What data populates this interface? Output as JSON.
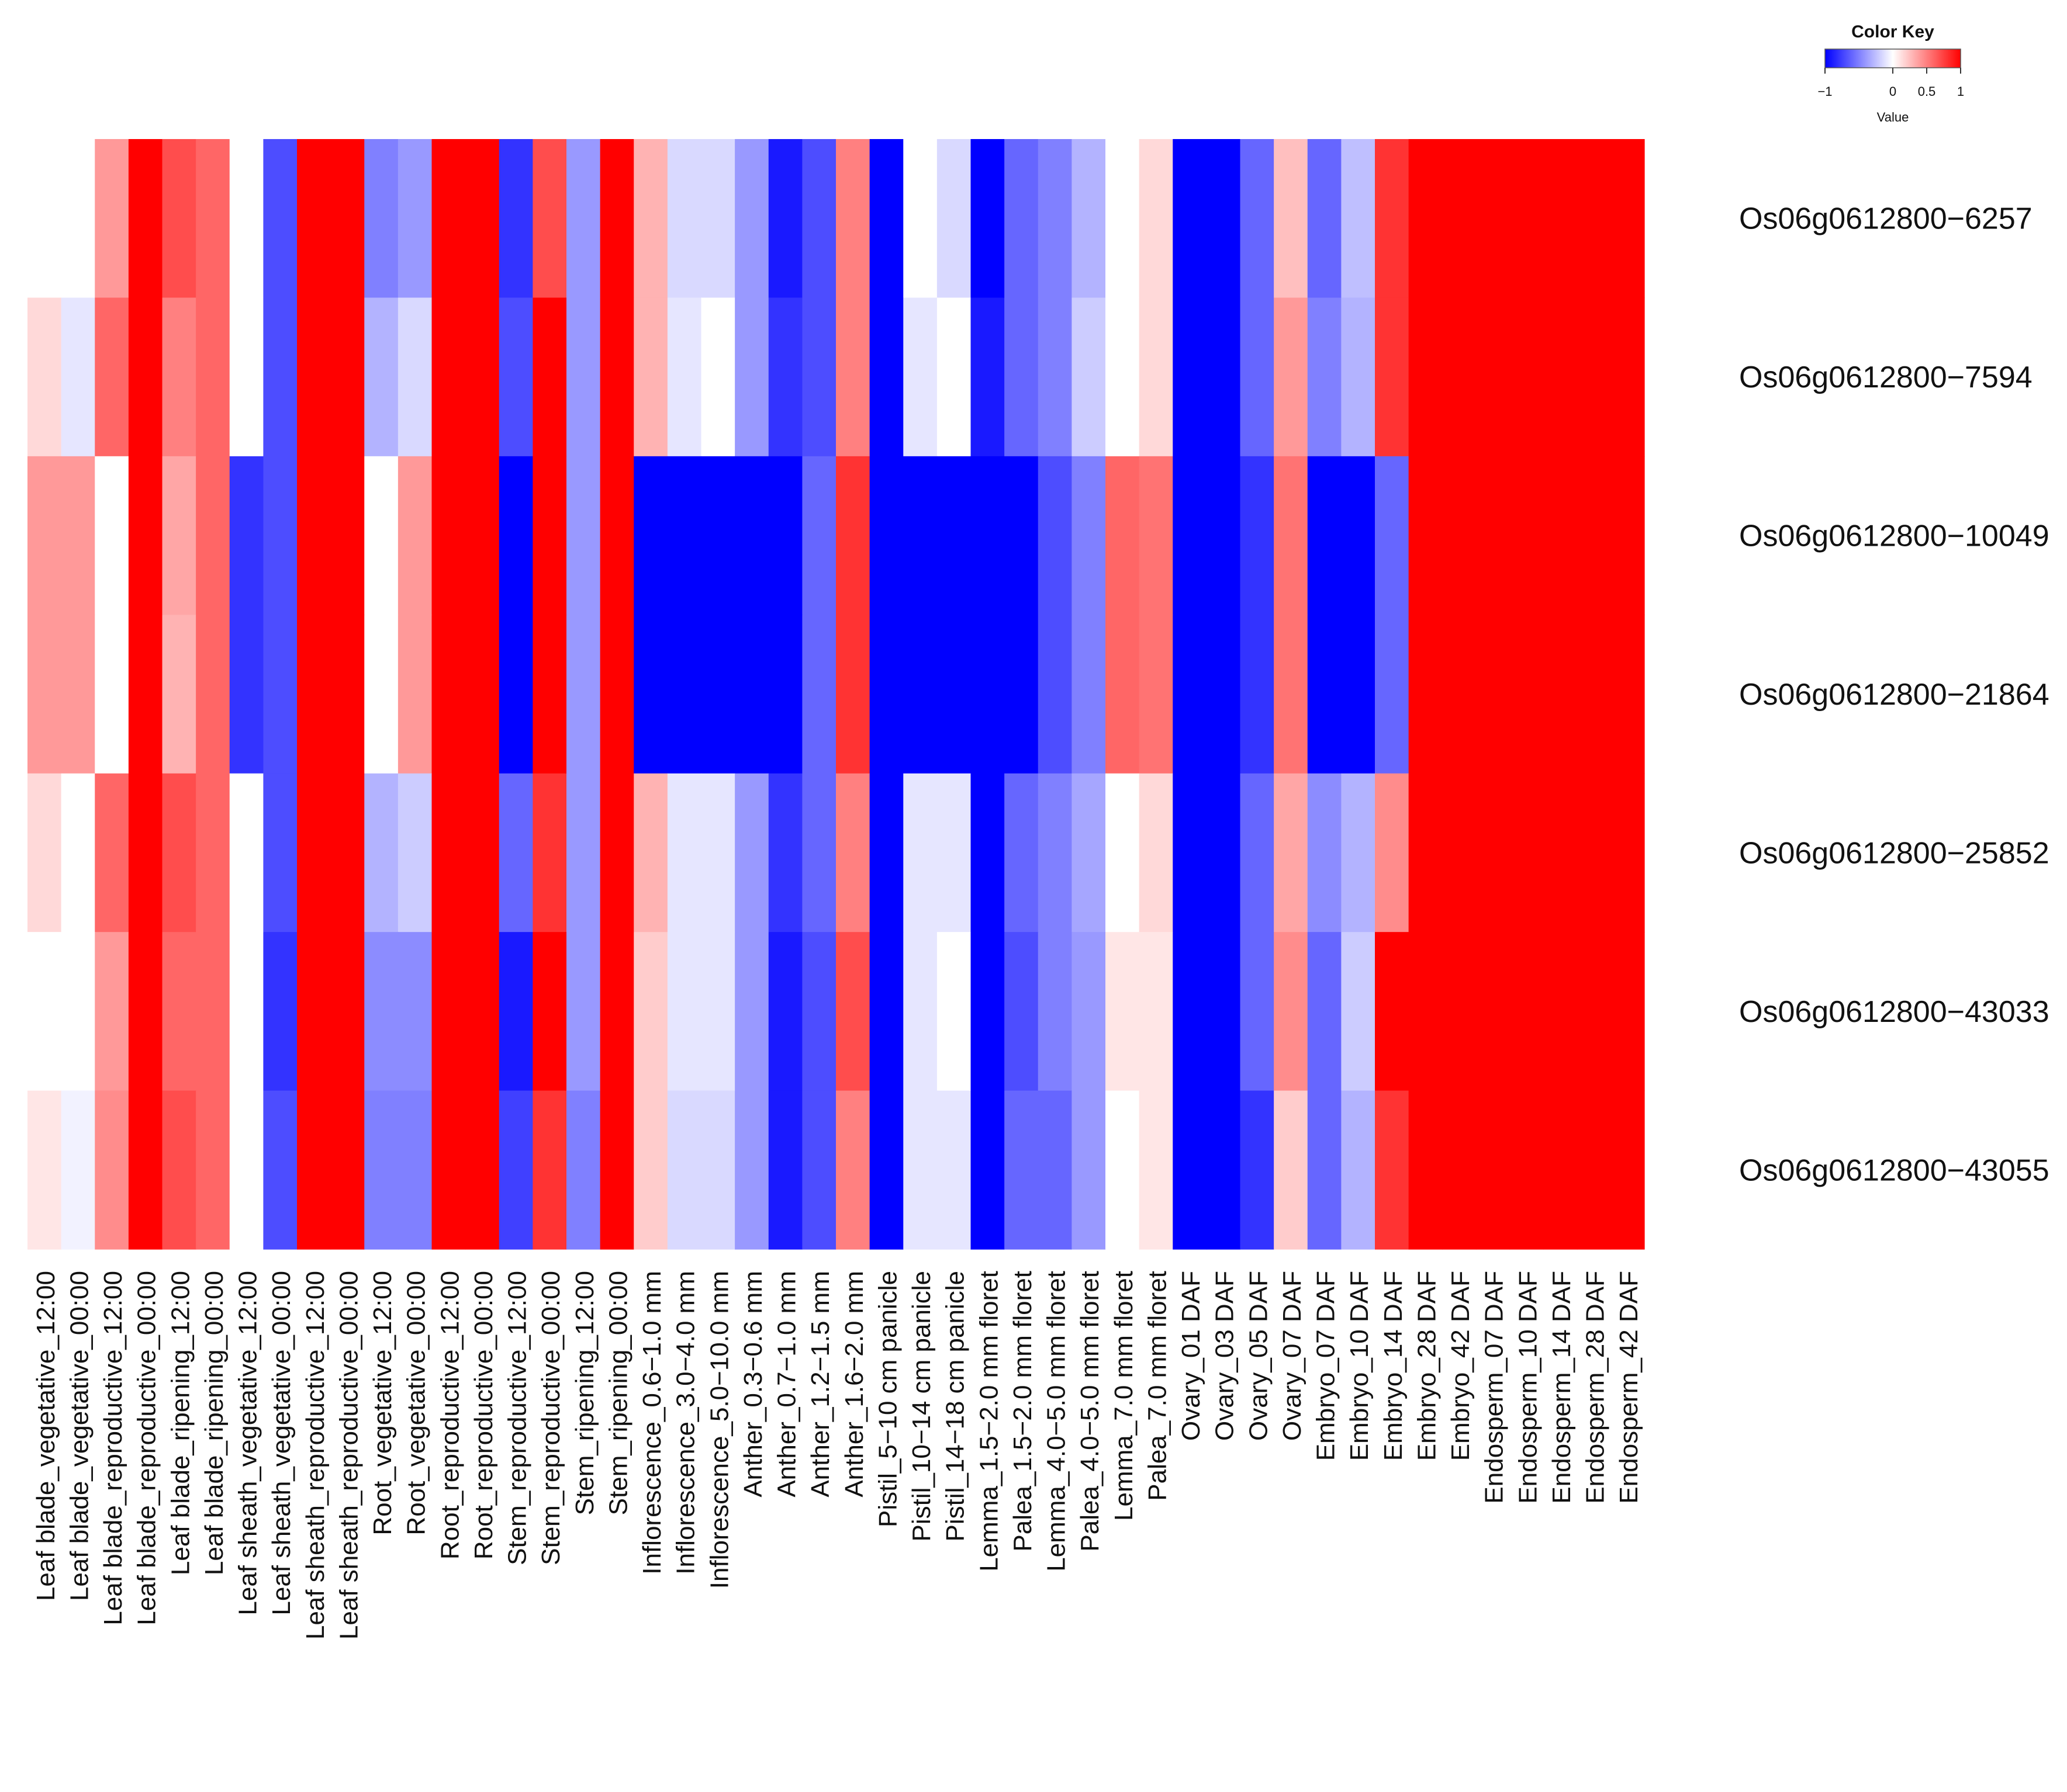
{
  "chart_data": {
    "type": "heatmap",
    "title": "",
    "color_key": {
      "title": "Color Key",
      "label": "Value",
      "ticks": [
        "−1",
        "0",
        "0.5",
        "1"
      ],
      "tick_values": [
        -1,
        0,
        0.5,
        1
      ],
      "range": [
        -1,
        1
      ],
      "low_color": "#0000ff",
      "mid_color": "#ffffff",
      "high_color": "#ff0000"
    },
    "rows": [
      "Os06g0612800−6257",
      "Os06g0612800−7594",
      "Os06g0612800−10049",
      "Os06g0612800−21864",
      "Os06g0612800−25852",
      "Os06g0612800−43033",
      "Os06g0612800−43055"
    ],
    "columns": [
      "Leaf blade_vegetative_12:00",
      "Leaf blade_vegetative_00:00",
      "Leaf blade_reproductive_12:00",
      "Leaf blade_reproductive_00:00",
      "Leaf blade_ripening_12:00",
      "Leaf blade_ripening_00:00",
      "Leaf sheath_vegetative_12:00",
      "Leaf sheath_vegetative_00:00",
      "Leaf sheath_reproductive_12:00",
      "Leaf sheath_reproductive_00:00",
      "Root_vegetative_12:00",
      "Root_vegetative_00:00",
      "Root_reproductive_12:00",
      "Root_reproductive_00:00",
      "Stem_reproductive_12:00",
      "Stem_reproductive_00:00",
      "Stem_ripening_12:00",
      "Stem_ripening_00:00",
      "Inflorescence_0.6−1.0 mm",
      "Inflorescence_3.0−4.0 mm",
      "Inflorescence_5.0−10.0 mm",
      "Anther_0.3−0.6 mm",
      "Anther_0.7−1.0 mm",
      "Anther_1.2−1.5 mm",
      "Anther_1.6−2.0 mm",
      "Pistil_5−10 cm panicle",
      "Pistil_10−14 cm panicle",
      "Pistil_14−18 cm panicle",
      "Lemma_1.5−2.0 mm floret",
      "Palea_1.5−2.0 mm floret",
      "Lemma_4.0−5.0 mm floret",
      "Palea_4.0−5.0 mm floret",
      "Lemma_7.0 mm floret",
      "Palea_7.0 mm floret",
      "Ovary_01 DAF",
      "Ovary_03 DAF",
      "Ovary_05 DAF",
      "Ovary_07 DAF",
      "Embryo_07 DAF",
      "Embryo_10 DAF",
      "Embryo_14 DAF",
      "Embryo_28 DAF",
      "Embryo_42 DAF",
      "Endosperm_07 DAF",
      "Endosperm_10 DAF",
      "Endosperm_14 DAF",
      "Endosperm_28 DAF",
      "Endosperm_42 DAF"
    ],
    "values": [
      [
        0,
        0,
        0.4,
        1,
        0.7,
        0.6,
        0,
        -0.7,
        1,
        1,
        -0.5,
        -0.4,
        1,
        1,
        -0.8,
        0.7,
        -0.4,
        1,
        0.3,
        -0.15,
        -0.15,
        -0.4,
        -0.9,
        -0.7,
        0.5,
        -1,
        0,
        -0.15,
        -1,
        -0.6,
        -0.5,
        -0.3,
        0,
        0.15,
        -1,
        -1,
        -0.6,
        0.25,
        -0.6,
        -0.25,
        0.8,
        1,
        1,
        1,
        1,
        1,
        1,
        1
      ],
      [
        0.15,
        -0.1,
        0.6,
        1,
        0.5,
        0.6,
        0,
        -0.7,
        1,
        1,
        -0.3,
        -0.15,
        1,
        1,
        -0.7,
        1,
        -0.4,
        1,
        0.3,
        -0.1,
        0,
        -0.4,
        -0.8,
        -0.7,
        0.5,
        -1,
        -0.1,
        0,
        -0.9,
        -0.6,
        -0.5,
        -0.2,
        0,
        0.15,
        -1,
        -1,
        -0.6,
        0.4,
        -0.5,
        -0.3,
        0.8,
        1,
        1,
        1,
        1,
        1,
        1,
        1
      ],
      [
        0.4,
        0.4,
        0,
        1,
        0.35,
        0.6,
        -0.8,
        -0.7,
        1,
        1,
        0,
        0.4,
        1,
        1,
        -1,
        1,
        -0.4,
        1,
        -1,
        -1,
        -1,
        -1,
        -1,
        -0.6,
        0.8,
        -1,
        -1,
        -1,
        -1,
        -1,
        -0.7,
        -0.5,
        0.6,
        0.55,
        -1,
        -1,
        -0.8,
        0.55,
        -1,
        -1,
        -0.6,
        1,
        1,
        1,
        1,
        1,
        1,
        1
      ],
      [
        0.4,
        0.4,
        0,
        1,
        0.3,
        0.6,
        -0.8,
        -0.7,
        1,
        1,
        0,
        0.4,
        1,
        1,
        -1,
        1,
        -0.4,
        1,
        -1,
        -1,
        -1,
        -1,
        -1,
        -0.6,
        0.8,
        -1,
        -1,
        -1,
        -1,
        -1,
        -0.7,
        -0.5,
        0.6,
        0.55,
        -1,
        -1,
        -0.8,
        0.55,
        -1,
        -1,
        -0.6,
        1,
        1,
        1,
        1,
        1,
        1,
        1
      ],
      [
        0.15,
        0,
        0.6,
        1,
        0.7,
        0.6,
        0,
        -0.7,
        1,
        1,
        -0.3,
        -0.2,
        1,
        1,
        -0.6,
        0.8,
        -0.4,
        1,
        0.3,
        -0.1,
        -0.1,
        -0.4,
        -0.8,
        -0.6,
        0.5,
        -1,
        -0.1,
        -0.1,
        -1,
        -0.6,
        -0.5,
        -0.35,
        0,
        0.15,
        -1,
        -1,
        -0.6,
        0.35,
        -0.45,
        -0.3,
        0.45,
        1,
        1,
        1,
        1,
        1,
        1,
        1
      ],
      [
        0,
        0,
        0.4,
        1,
        0.6,
        0.6,
        0,
        -0.8,
        1,
        1,
        -0.45,
        -0.45,
        1,
        1,
        -0.9,
        1,
        -0.4,
        1,
        0.2,
        -0.1,
        -0.1,
        -0.4,
        -0.9,
        -0.7,
        0.7,
        -1,
        -0.1,
        0,
        -1,
        -0.7,
        -0.5,
        -0.4,
        0.1,
        0.1,
        -1,
        -1,
        -0.6,
        0.45,
        -0.6,
        -0.2,
        1,
        1,
        1,
        1,
        1,
        1,
        1,
        1
      ],
      [
        0.1,
        -0.05,
        0.45,
        1,
        0.7,
        0.6,
        0,
        -0.7,
        1,
        1,
        -0.5,
        -0.5,
        1,
        1,
        -0.75,
        0.8,
        -0.5,
        1,
        0.2,
        -0.15,
        -0.15,
        -0.4,
        -0.9,
        -0.7,
        0.5,
        -1,
        -0.1,
        -0.1,
        -1,
        -0.6,
        -0.6,
        -0.4,
        0,
        0.1,
        -1,
        -1,
        -0.8,
        0.2,
        -0.6,
        -0.3,
        0.8,
        1,
        1,
        1,
        1,
        1,
        1,
        1
      ]
    ]
  }
}
